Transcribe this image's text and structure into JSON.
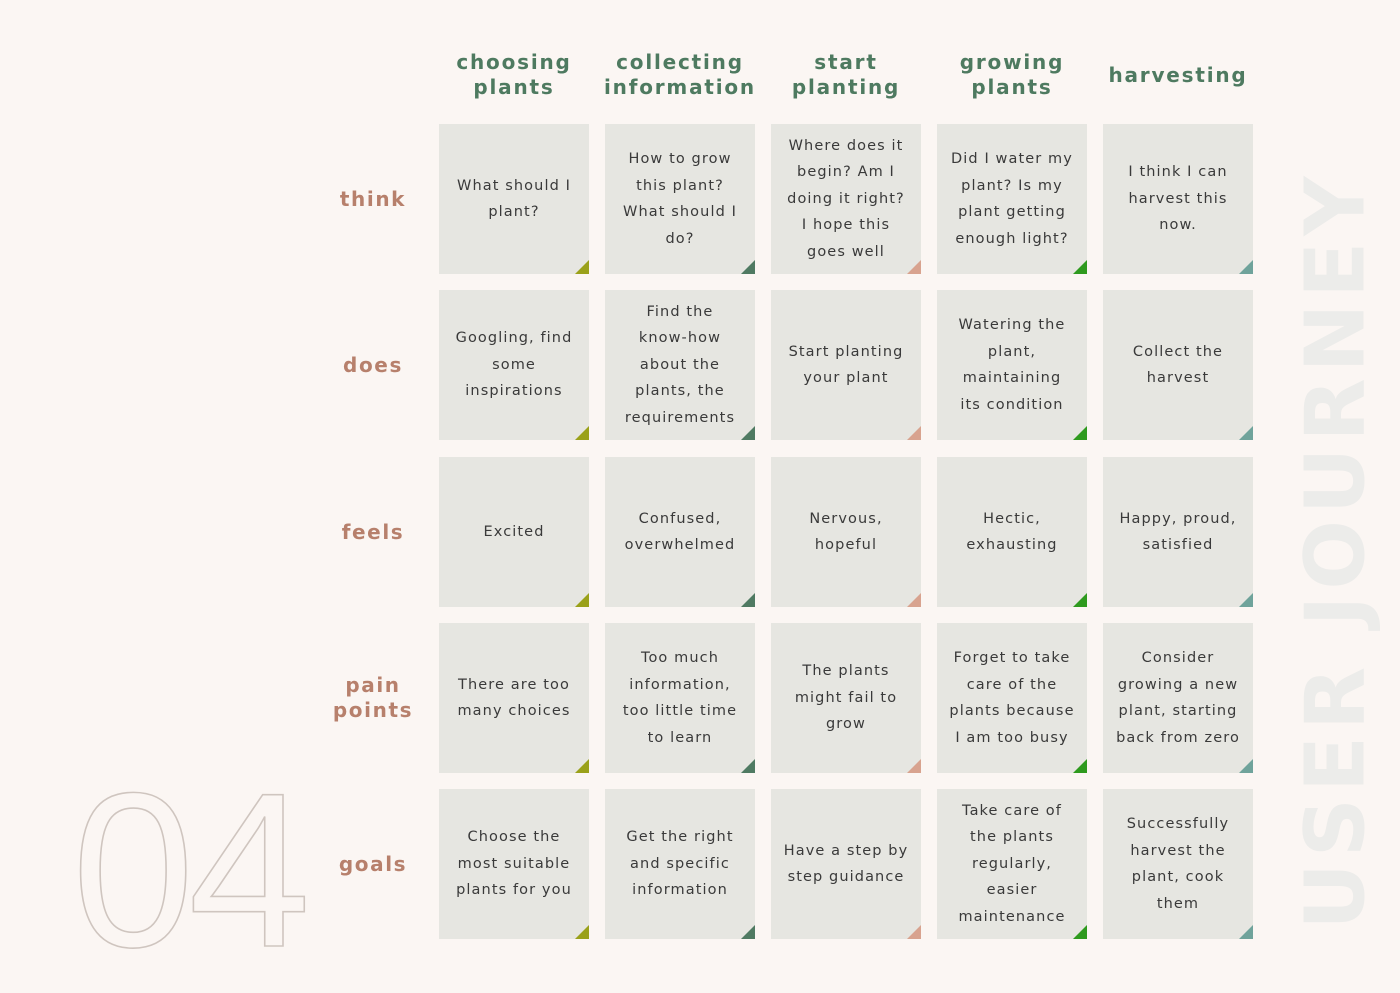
{
  "big_number": "04",
  "side_title": "USER JOURNEY",
  "columns": [
    {
      "label": "choosing\nplants",
      "accent": "#9aa11a"
    },
    {
      "label": "collecting\ninformation",
      "accent": "#4f7a62"
    },
    {
      "label": "start\nplanting",
      "accent": "#d8a38f"
    },
    {
      "label": "growing\nplants",
      "accent": "#2e9a1e"
    },
    {
      "label": "harvesting",
      "accent": "#6fa39b"
    }
  ],
  "rows": [
    {
      "label": "think",
      "cells": [
        "What should I\nplant?",
        "How to grow\nthis plant?\nWhat should I\ndo?",
        "Where does it\nbegin? Am I\ndoing it right?\nI hope this\ngoes well",
        "Did I water my\nplant? Is my\nplant getting\nenough light?",
        "I think I can\nharvest this\nnow."
      ]
    },
    {
      "label": "does",
      "cells": [
        "Googling, find\nsome\ninspirations",
        "Find the\nknow-how\nabout the\nplants, the\nrequirements",
        "Start planting\nyour plant",
        "Watering the\nplant,\nmaintaining\nits condition",
        "Collect the\nharvest"
      ]
    },
    {
      "label": "feels",
      "cells": [
        "Excited",
        "Confused,\noverwhelmed",
        "Nervous,\nhopeful",
        "Hectic,\nexhausting",
        "Happy, proud,\nsatisfied"
      ]
    },
    {
      "label": "pain\npoints",
      "cells": [
        "There are too\nmany choices",
        "Too much\ninformation,\ntoo little time\nto learn",
        "The plants\nmight fail to\ngrow",
        "Forget to take\ncare of the\nplants because\nI am too busy",
        "Consider\ngrowing a new\nplant, starting\nback from zero"
      ]
    },
    {
      "label": "goals",
      "cells": [
        "Choose the\nmost suitable\nplants  for you",
        "Get the right\nand specific\ninformation",
        "Have a step by\nstep guidance",
        "Take care of\nthe plants\nregularly,\neasier\nmaintenance",
        "Successfully\nharvest the\nplant, cook\nthem"
      ]
    }
  ]
}
